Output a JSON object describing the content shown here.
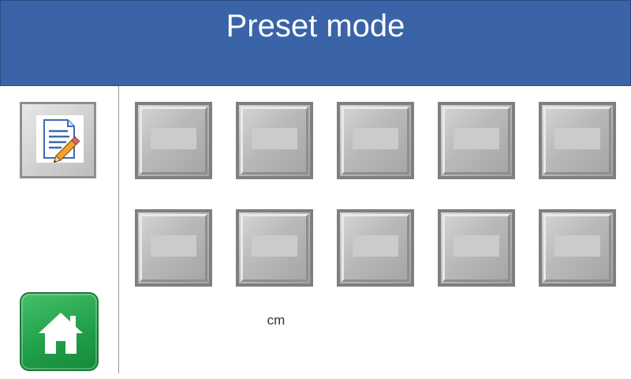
{
  "header": {
    "title": "Preset mode",
    "background_color": "#3a63a8"
  },
  "sidebar": {
    "edit_button": {
      "icon": "edit-document-icon"
    },
    "home_button": {
      "icon": "home-icon",
      "color": "#22a04a"
    }
  },
  "presets": [
    {
      "label": ""
    },
    {
      "label": ""
    },
    {
      "label": ""
    },
    {
      "label": ""
    },
    {
      "label": ""
    },
    {
      "label": ""
    },
    {
      "label": ""
    },
    {
      "label": ""
    },
    {
      "label": ""
    },
    {
      "label": ""
    }
  ],
  "unit": "cm"
}
